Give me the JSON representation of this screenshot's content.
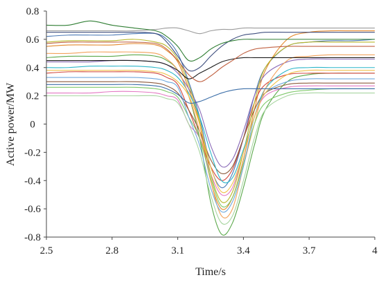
{
  "chart_data": {
    "type": "line",
    "title": "",
    "xlabel": "Time/s",
    "ylabel": "Active power/MW",
    "xlim": [
      2.5,
      4.0
    ],
    "ylim": [
      -0.8,
      0.8
    ],
    "x_ticks": [
      "2.5",
      "2.8",
      "3.1",
      "3.4",
      "3.7",
      "4"
    ],
    "y_ticks": [
      "0.8",
      "0.6",
      "0.4",
      "0.2",
      "0",
      "-0.2",
      "-0.4",
      "-0.6",
      "-0.8"
    ],
    "grid": false,
    "legend": "none",
    "x": [
      2.5,
      2.6,
      2.7,
      2.8,
      2.9,
      3.0,
      3.05,
      3.1,
      3.15,
      3.2,
      3.25,
      3.3,
      3.35,
      3.4,
      3.45,
      3.5,
      3.6,
      3.7,
      3.8,
      3.9,
      4.0
    ],
    "series": [
      {
        "color": "#4a78b5",
        "values": [
          0.62,
          0.63,
          0.63,
          0.63,
          0.64,
          0.64,
          0.6,
          0.5,
          0.3,
          0.05,
          -0.3,
          -0.45,
          -0.35,
          -0.1,
          0.2,
          0.4,
          0.55,
          0.58,
          0.59,
          0.59,
          0.6
        ]
      },
      {
        "color": "#e3882b",
        "values": [
          0.55,
          0.56,
          0.56,
          0.56,
          0.57,
          0.56,
          0.52,
          0.44,
          0.25,
          0.0,
          -0.4,
          -0.6,
          -0.52,
          -0.25,
          0.1,
          0.38,
          0.6,
          0.65,
          0.66,
          0.66,
          0.66
        ]
      },
      {
        "color": "#5aa84a",
        "values": [
          0.47,
          0.48,
          0.48,
          0.48,
          0.49,
          0.48,
          0.45,
          0.38,
          0.2,
          -0.1,
          -0.55,
          -0.78,
          -0.7,
          -0.45,
          -0.15,
          0.1,
          0.3,
          0.35,
          0.36,
          0.36,
          0.36
        ]
      },
      {
        "color": "#d2453c",
        "values": [
          0.36,
          0.37,
          0.37,
          0.37,
          0.37,
          0.36,
          0.33,
          0.28,
          0.1,
          -0.1,
          -0.3,
          -0.4,
          -0.32,
          -0.1,
          0.15,
          0.28,
          0.35,
          0.36,
          0.36,
          0.36,
          0.36
        ]
      },
      {
        "color": "#8a6bb8",
        "values": [
          0.44,
          0.44,
          0.44,
          0.45,
          0.45,
          0.44,
          0.42,
          0.36,
          0.25,
          0.1,
          -0.15,
          -0.3,
          -0.25,
          -0.05,
          0.2,
          0.35,
          0.44,
          0.46,
          0.46,
          0.46,
          0.46
        ]
      },
      {
        "color": "#8c5a3c",
        "values": [
          0.3,
          0.3,
          0.3,
          0.3,
          0.3,
          0.29,
          0.27,
          0.22,
          0.1,
          -0.05,
          -0.25,
          -0.35,
          -0.3,
          -0.1,
          0.1,
          0.22,
          0.28,
          0.29,
          0.29,
          0.29,
          0.29
        ]
      },
      {
        "color": "#e377c2",
        "values": [
          0.22,
          0.22,
          0.22,
          0.23,
          0.23,
          0.22,
          0.2,
          0.17,
          0.0,
          -0.1,
          -0.35,
          -0.5,
          -0.45,
          -0.2,
          0.05,
          0.2,
          0.26,
          0.27,
          0.27,
          0.27,
          0.27
        ]
      },
      {
        "color": "#9a9a9a",
        "values": [
          0.66,
          0.66,
          0.66,
          0.66,
          0.66,
          0.67,
          0.68,
          0.68,
          0.66,
          0.64,
          0.66,
          0.67,
          0.67,
          0.68,
          0.68,
          0.68,
          0.68,
          0.68,
          0.68,
          0.68,
          0.68
        ]
      },
      {
        "color": "#b8b82a",
        "values": [
          0.58,
          0.59,
          0.59,
          0.59,
          0.6,
          0.58,
          0.55,
          0.46,
          0.28,
          0.02,
          -0.35,
          -0.55,
          -0.48,
          -0.2,
          0.15,
          0.4,
          0.55,
          0.58,
          0.58,
          0.58,
          0.58
        ]
      },
      {
        "color": "#2ab5c8",
        "values": [
          0.4,
          0.4,
          0.41,
          0.41,
          0.41,
          0.4,
          0.38,
          0.33,
          0.22,
          0.05,
          -0.2,
          -0.4,
          -0.38,
          -0.18,
          0.05,
          0.25,
          0.38,
          0.4,
          0.4,
          0.4,
          0.4
        ]
      },
      {
        "color": "#3f4f7f",
        "values": [
          0.65,
          0.65,
          0.65,
          0.65,
          0.65,
          0.64,
          0.58,
          0.48,
          0.38,
          0.4,
          0.48,
          0.55,
          0.6,
          0.63,
          0.64,
          0.65,
          0.65,
          0.65,
          0.65,
          0.65,
          0.65
        ]
      },
      {
        "color": "#2e7d32",
        "values": [
          0.7,
          0.7,
          0.73,
          0.7,
          0.68,
          0.66,
          0.62,
          0.55,
          0.45,
          0.47,
          0.53,
          0.57,
          0.59,
          0.6,
          0.6,
          0.6,
          0.6,
          0.6,
          0.6,
          0.6,
          0.6
        ]
      },
      {
        "color": "#f2a25a",
        "values": [
          0.5,
          0.5,
          0.51,
          0.51,
          0.51,
          0.5,
          0.46,
          0.38,
          0.2,
          -0.05,
          -0.4,
          -0.65,
          -0.6,
          -0.3,
          0.0,
          0.25,
          0.45,
          0.48,
          0.49,
          0.49,
          0.49
        ]
      },
      {
        "color": "#7ec86a",
        "values": [
          0.26,
          0.26,
          0.26,
          0.26,
          0.26,
          0.25,
          0.23,
          0.19,
          0.05,
          -0.1,
          -0.38,
          -0.58,
          -0.52,
          -0.28,
          0.0,
          0.15,
          0.22,
          0.24,
          0.25,
          0.25,
          0.25
        ]
      },
      {
        "color": "#6fa8dc",
        "values": [
          0.33,
          0.33,
          0.33,
          0.33,
          0.33,
          0.32,
          0.3,
          0.26,
          0.05,
          -0.15,
          -0.45,
          -0.62,
          -0.55,
          -0.3,
          0.05,
          0.22,
          0.3,
          0.32,
          0.32,
          0.32,
          0.32
        ]
      },
      {
        "color": "#1a1a1a",
        "values": [
          0.45,
          0.45,
          0.45,
          0.45,
          0.45,
          0.44,
          0.42,
          0.38,
          0.32,
          0.36,
          0.4,
          0.44,
          0.46,
          0.47,
          0.47,
          0.47,
          0.47,
          0.47,
          0.47,
          0.47,
          0.47
        ]
      },
      {
        "color": "#f0c04a",
        "values": [
          0.38,
          0.38,
          0.38,
          0.38,
          0.38,
          0.37,
          0.35,
          0.3,
          0.2,
          0.0,
          -0.3,
          -0.48,
          -0.42,
          -0.2,
          0.05,
          0.22,
          0.35,
          0.38,
          0.38,
          0.38,
          0.38
        ]
      },
      {
        "color": "#c06040",
        "values": [
          0.57,
          0.58,
          0.58,
          0.58,
          0.58,
          0.57,
          0.53,
          0.45,
          0.35,
          0.3,
          0.34,
          0.4,
          0.45,
          0.5,
          0.53,
          0.54,
          0.55,
          0.55,
          0.55,
          0.55,
          0.55
        ]
      },
      {
        "color": "#a7d5a0",
        "values": [
          0.2,
          0.2,
          0.2,
          0.2,
          0.2,
          0.2,
          0.18,
          0.15,
          0.0,
          -0.2,
          -0.5,
          -0.7,
          -0.65,
          -0.4,
          -0.1,
          0.1,
          0.2,
          0.22,
          0.22,
          0.22,
          0.22
        ]
      },
      {
        "color": "#3b6ea8",
        "values": [
          0.28,
          0.28,
          0.28,
          0.28,
          0.28,
          0.27,
          0.25,
          0.21,
          0.15,
          0.16,
          0.19,
          0.22,
          0.24,
          0.25,
          0.25,
          0.25,
          0.25,
          0.25,
          0.25,
          0.25,
          0.25
        ]
      }
    ]
  }
}
